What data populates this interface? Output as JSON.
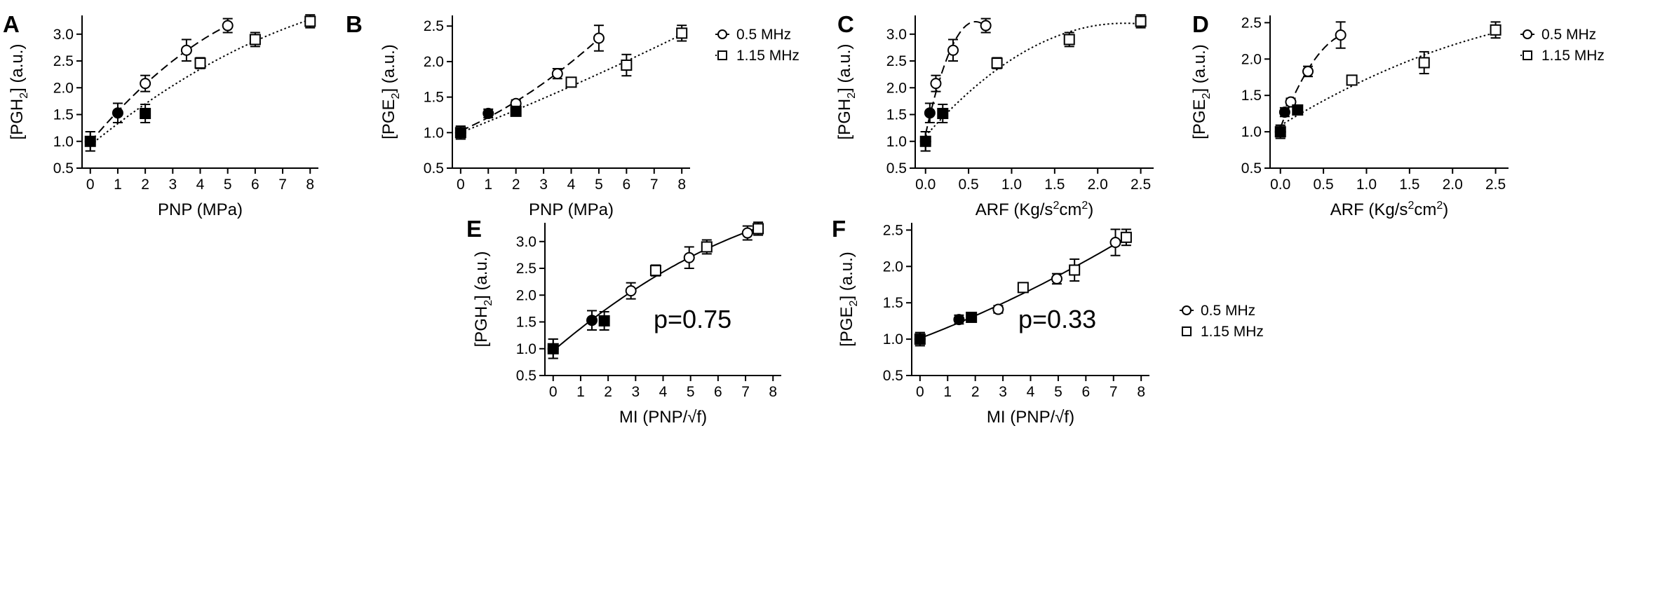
{
  "figure": {
    "legend_a": [
      {
        "marker": "circle",
        "label": "0.5 MHz",
        "style": "dashed"
      },
      {
        "marker": "square",
        "label": "1.15 MHz",
        "style": "dotted"
      }
    ],
    "legend_b": [
      {
        "marker": "circle",
        "label": "0.5 MHz",
        "style": "solid"
      },
      {
        "marker": "square",
        "label": "1.15 MHz",
        "style": "none"
      }
    ]
  },
  "chart_data": [
    {
      "panel": "A",
      "type": "scatter",
      "xlabel": "PNP (MPa)",
      "ylabel_main": "[PGH",
      "ylabel_sub": "2",
      "ylabel_end": "] (a.u.)",
      "xlim": [
        -0.3,
        8.3
      ],
      "ylim": [
        0.5,
        3.35
      ],
      "xticks": [
        0,
        1,
        2,
        3,
        4,
        5,
        6,
        7,
        8
      ],
      "xtick_labels": [
        "0",
        "1",
        "2",
        "3",
        "4",
        "5",
        "6",
        "7",
        "8"
      ],
      "yticks": [
        0.5,
        1.0,
        1.5,
        2.0,
        2.5,
        3.0
      ],
      "ytick_labels": [
        "0.5",
        "1.0",
        "1.5",
        "2.0",
        "2.5",
        "3.0"
      ],
      "series": [
        {
          "name": "0.5 MHz",
          "marker": "circle",
          "line": "dashed",
          "x": [
            0,
            1,
            2,
            3.5,
            5
          ],
          "y": [
            1.0,
            1.53,
            2.08,
            2.7,
            3.16
          ],
          "err": [
            0.18,
            0.18,
            0.15,
            0.2,
            0.13
          ],
          "filled": [
            true,
            true,
            false,
            false,
            false
          ]
        },
        {
          "name": "1.15 MHz",
          "marker": "square",
          "line": "dotted",
          "x": [
            0,
            2,
            4,
            6,
            8
          ],
          "y": [
            1.0,
            1.52,
            2.46,
            2.9,
            3.24
          ],
          "err": [
            0.18,
            0.17,
            0.1,
            0.13,
            0.12
          ],
          "filled": [
            true,
            true,
            false,
            false,
            false
          ]
        }
      ]
    },
    {
      "panel": "B",
      "type": "scatter",
      "xlabel": "PNP (MPa)",
      "ylabel_main": "[PGE",
      "ylabel_sub": "2",
      "ylabel_end": "] (a.u.)",
      "xlim": [
        -0.3,
        8.3
      ],
      "ylim": [
        0.5,
        2.65
      ],
      "xticks": [
        0,
        1,
        2,
        3,
        4,
        5,
        6,
        7,
        8
      ],
      "xtick_labels": [
        "0",
        "1",
        "2",
        "3",
        "4",
        "5",
        "6",
        "7",
        "8"
      ],
      "yticks": [
        0.5,
        1.0,
        1.5,
        2.0,
        2.5
      ],
      "ytick_labels": [
        "0.5",
        "1.0",
        "1.5",
        "2.0",
        "2.5"
      ],
      "series": [
        {
          "name": "0.5 MHz",
          "marker": "circle",
          "line": "dashed",
          "x": [
            0,
            1,
            2,
            3.5,
            5
          ],
          "y": [
            1.0,
            1.27,
            1.41,
            1.83,
            2.33
          ],
          "err": [
            0.09,
            0.06,
            0.05,
            0.07,
            0.18
          ],
          "filled": [
            true,
            true,
            false,
            false,
            false
          ]
        },
        {
          "name": "1.15 MHz",
          "marker": "square",
          "line": "dotted",
          "x": [
            0,
            2,
            4,
            6,
            8
          ],
          "y": [
            1.0,
            1.3,
            1.71,
            1.95,
            2.4
          ],
          "err": [
            0.09,
            0.05,
            0.06,
            0.15,
            0.11
          ],
          "filled": [
            true,
            true,
            false,
            false,
            false
          ]
        }
      ]
    },
    {
      "panel": "C",
      "type": "scatter",
      "xlabel_main": "ARF (Kg/s",
      "xlabel_sup1": "2",
      "xlabel_mid": "cm",
      "xlabel_sup2": "2",
      "xlabel_end": ")",
      "ylabel_main": "[PGH",
      "ylabel_sub": "2",
      "ylabel_end": "] (a.u.)",
      "xlim": [
        -0.12,
        2.65
      ],
      "ylim": [
        0.5,
        3.35
      ],
      "xticks": [
        0.0,
        0.5,
        1.0,
        1.5,
        2.0,
        2.5
      ],
      "xtick_labels": [
        "0.0",
        "0.5",
        "1.0",
        "1.5",
        "2.0",
        "2.5"
      ],
      "yticks": [
        0.5,
        1.0,
        1.5,
        2.0,
        2.5,
        3.0
      ],
      "ytick_labels": [
        "0.5",
        "1.0",
        "1.5",
        "2.0",
        "2.5",
        "3.0"
      ],
      "series": [
        {
          "name": "0.5 MHz",
          "marker": "circle",
          "line": "dashed",
          "x": [
            0,
            0.05,
            0.12,
            0.32,
            0.7
          ],
          "y": [
            1.0,
            1.53,
            2.08,
            2.7,
            3.16
          ],
          "err": [
            0.18,
            0.18,
            0.15,
            0.2,
            0.13
          ],
          "filled": [
            true,
            true,
            false,
            false,
            false
          ]
        },
        {
          "name": "1.15 MHz",
          "marker": "square",
          "line": "dotted",
          "x": [
            0,
            0.2,
            0.83,
            1.67,
            2.5
          ],
          "y": [
            1.0,
            1.52,
            2.46,
            2.9,
            3.24
          ],
          "err": [
            0.18,
            0.17,
            0.1,
            0.13,
            0.12
          ],
          "filled": [
            true,
            true,
            false,
            false,
            false
          ]
        }
      ]
    },
    {
      "panel": "D",
      "type": "scatter",
      "xlabel_main": "ARF (Kg/s",
      "xlabel_sup1": "2",
      "xlabel_mid": "cm",
      "xlabel_sup2": "2",
      "xlabel_end": ")",
      "ylabel_main": "[PGE",
      "ylabel_sub": "2",
      "ylabel_end": "] (a.u.)",
      "xlim": [
        -0.12,
        2.65
      ],
      "ylim": [
        0.5,
        2.6
      ],
      "xticks": [
        0.0,
        0.5,
        1.0,
        1.5,
        2.0,
        2.5
      ],
      "xtick_labels": [
        "0.0",
        "0.5",
        "1.0",
        "1.5",
        "2.0",
        "2.5"
      ],
      "yticks": [
        0.5,
        1.0,
        1.5,
        2.0,
        2.5
      ],
      "ytick_labels": [
        "0.5",
        "1.0",
        "1.5",
        "2.0",
        "2.5"
      ],
      "series": [
        {
          "name": "0.5 MHz",
          "marker": "circle",
          "line": "dashed",
          "x": [
            0,
            0.05,
            0.12,
            0.32,
            0.7
          ],
          "y": [
            1.0,
            1.27,
            1.41,
            1.83,
            2.33
          ],
          "err": [
            0.09,
            0.06,
            0.05,
            0.07,
            0.18
          ],
          "filled": [
            true,
            true,
            false,
            false,
            false
          ]
        },
        {
          "name": "1.15 MHz",
          "marker": "square",
          "line": "dotted",
          "x": [
            0,
            0.2,
            0.83,
            1.67,
            2.5
          ],
          "y": [
            1.0,
            1.3,
            1.71,
            1.95,
            2.4
          ],
          "err": [
            0.09,
            0.05,
            0.06,
            0.15,
            0.11
          ],
          "filled": [
            true,
            true,
            false,
            false,
            false
          ]
        }
      ]
    },
    {
      "panel": "E",
      "type": "scatter",
      "xlabel": "MI (PNP/√f)",
      "ylabel_main": "[PGH",
      "ylabel_sub": "2",
      "ylabel_end": "] (a.u.)",
      "xlim": [
        -0.3,
        8.3
      ],
      "ylim": [
        0.5,
        3.35
      ],
      "xticks": [
        0,
        1,
        2,
        3,
        4,
        5,
        6,
        7,
        8
      ],
      "xtick_labels": [
        "0",
        "1",
        "2",
        "3",
        "4",
        "5",
        "6",
        "7",
        "8"
      ],
      "yticks": [
        0.5,
        1.0,
        1.5,
        2.0,
        2.5,
        3.0
      ],
      "ytick_labels": [
        "0.5",
        "1.0",
        "1.5",
        "2.0",
        "2.5",
        "3.0"
      ],
      "annotation": "p=0.75",
      "series": [
        {
          "name": "0.5 MHz",
          "marker": "circle",
          "line": "solid",
          "x": [
            0,
            1.41,
            2.83,
            4.95,
            7.07
          ],
          "y": [
            1.0,
            1.53,
            2.08,
            2.7,
            3.16
          ],
          "err": [
            0.18,
            0.18,
            0.15,
            0.2,
            0.13
          ],
          "filled": [
            true,
            true,
            false,
            false,
            false
          ]
        },
        {
          "name": "1.15 MHz",
          "marker": "square",
          "line": "none",
          "x": [
            0,
            1.86,
            3.73,
            5.59,
            7.46
          ],
          "y": [
            1.0,
            1.52,
            2.46,
            2.9,
            3.24
          ],
          "err": [
            0.18,
            0.17,
            0.1,
            0.13,
            0.12
          ],
          "filled": [
            true,
            true,
            false,
            false,
            false
          ]
        }
      ]
    },
    {
      "panel": "F",
      "type": "scatter",
      "xlabel": "MI (PNP/√f)",
      "ylabel_main": "[PGE",
      "ylabel_sub": "2",
      "ylabel_end": "] (a.u.)",
      "xlim": [
        -0.3,
        8.3
      ],
      "ylim": [
        0.5,
        2.6
      ],
      "xticks": [
        0,
        1,
        2,
        3,
        4,
        5,
        6,
        7,
        8
      ],
      "xtick_labels": [
        "0",
        "1",
        "2",
        "3",
        "4",
        "5",
        "6",
        "7",
        "8"
      ],
      "yticks": [
        0.5,
        1.0,
        1.5,
        2.0,
        2.5
      ],
      "ytick_labels": [
        "0.5",
        "1.0",
        "1.5",
        "2.0",
        "2.5"
      ],
      "annotation": "p=0.33",
      "series": [
        {
          "name": "0.5 MHz",
          "marker": "circle",
          "line": "solid",
          "x": [
            0,
            1.41,
            2.83,
            4.95,
            7.07
          ],
          "y": [
            1.0,
            1.27,
            1.41,
            1.83,
            2.33
          ],
          "err": [
            0.09,
            0.06,
            0.05,
            0.07,
            0.18
          ],
          "filled": [
            true,
            true,
            false,
            false,
            false
          ]
        },
        {
          "name": "1.15 MHz",
          "marker": "square",
          "line": "none",
          "x": [
            0,
            1.86,
            3.73,
            5.59,
            7.46
          ],
          "y": [
            1.0,
            1.3,
            1.71,
            1.95,
            2.4
          ],
          "err": [
            0.09,
            0.05,
            0.06,
            0.15,
            0.11
          ],
          "filled": [
            true,
            true,
            false,
            false,
            false
          ]
        }
      ]
    }
  ]
}
